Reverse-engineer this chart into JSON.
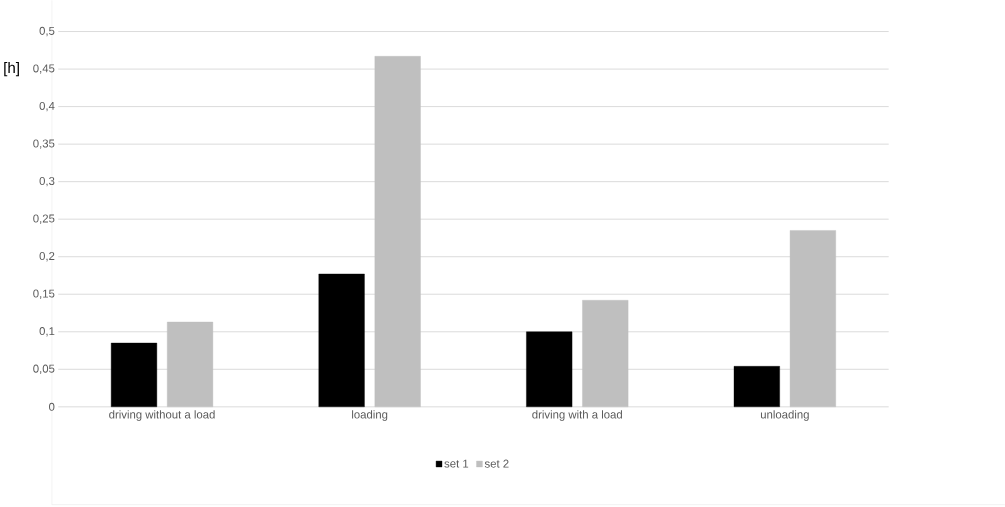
{
  "chart_data": {
    "type": "bar",
    "ylabel": "[h]",
    "categories": [
      "driving without a load",
      "loading",
      "driving with a load",
      "unloading"
    ],
    "series": [
      {
        "name": "set 1",
        "color": "#000000",
        "values": [
          0.085,
          0.177,
          0.1,
          0.054
        ]
      },
      {
        "name": "set 2",
        "color": "#bfbfbf",
        "values": [
          0.113,
          0.467,
          0.142,
          0.235
        ]
      }
    ],
    "ylim": [
      0,
      0.5
    ],
    "yticks": [
      0,
      {
        "value": 0.05,
        "label": "0,05"
      },
      {
        "value": 0.1,
        "label": "0,1"
      },
      {
        "value": 0.15,
        "label": "0,15"
      },
      {
        "value": 0.2,
        "label": "0,2"
      },
      {
        "value": 0.25,
        "label": "0,25"
      },
      {
        "value": 0.3,
        "label": "0,3"
      },
      {
        "value": 0.35,
        "label": "0,35"
      },
      {
        "value": 0.4,
        "label": "0,4"
      },
      {
        "value": 0.45,
        "label": "0,45"
      },
      {
        "value": 0.5,
        "label": "0,5"
      }
    ],
    "grid": "y",
    "legend": "bottom"
  }
}
